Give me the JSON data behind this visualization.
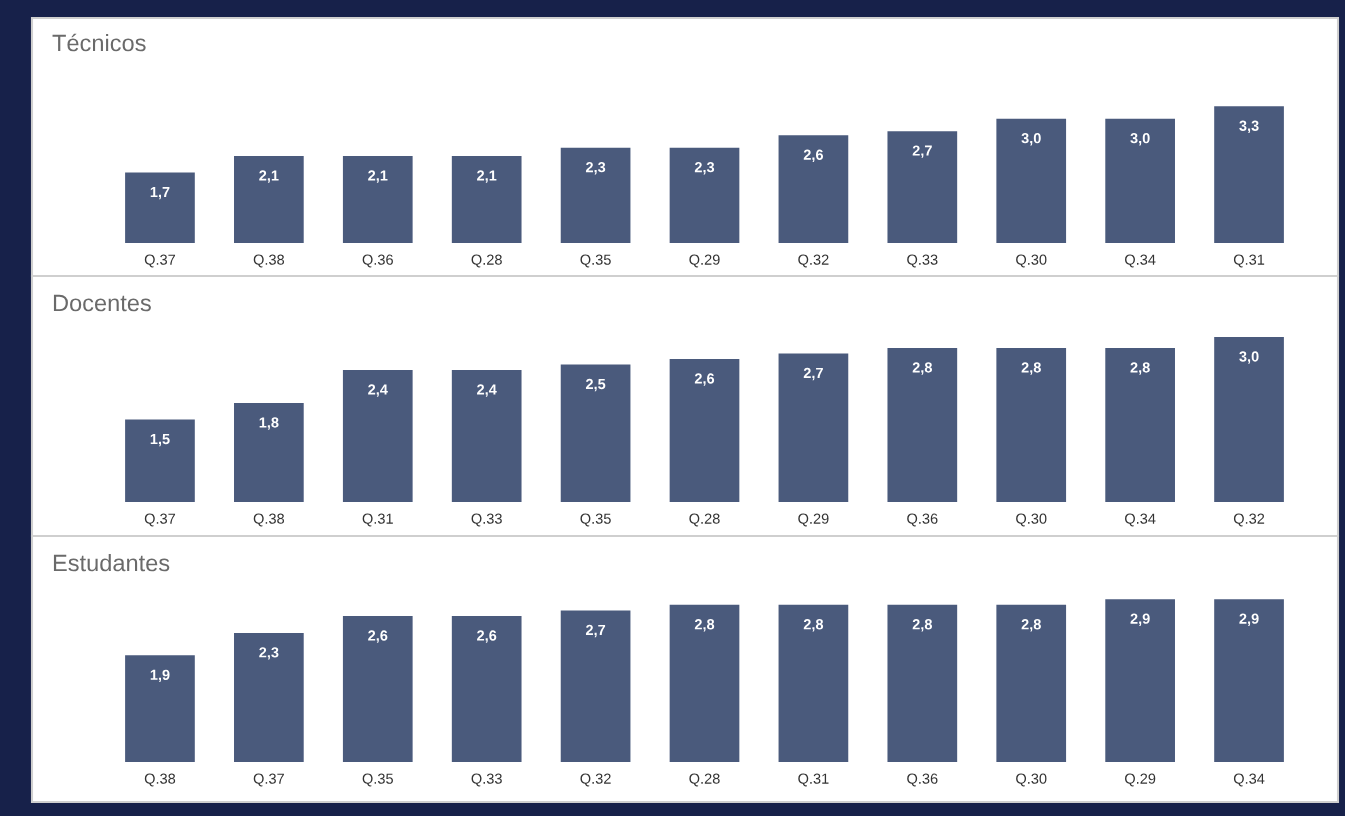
{
  "chart_data": [
    {
      "type": "bar",
      "title": "Técnicos",
      "categories": [
        "Q.37",
        "Q.38",
        "Q.36",
        "Q.28",
        "Q.35",
        "Q.29",
        "Q.32",
        "Q.33",
        "Q.30",
        "Q.34",
        "Q.31"
      ],
      "values": [
        1.7,
        2.1,
        2.1,
        2.1,
        2.3,
        2.3,
        2.6,
        2.7,
        3.0,
        3.0,
        3.3
      ],
      "value_labels": [
        "1,7",
        "2,1",
        "2,1",
        "2,1",
        "2,3",
        "2,3",
        "2,6",
        "2,7",
        "3,0",
        "3,0",
        "3,3"
      ],
      "color": "#4a5a7c",
      "tick_labels": "x",
      "grid": false,
      "legend": false
    },
    {
      "type": "bar",
      "title": "Docentes",
      "categories": [
        "Q.37",
        "Q.38",
        "Q.31",
        "Q.33",
        "Q.35",
        "Q.28",
        "Q.29",
        "Q.36",
        "Q.30",
        "Q.34",
        "Q.32"
      ],
      "values": [
        1.5,
        1.8,
        2.4,
        2.4,
        2.5,
        2.6,
        2.7,
        2.8,
        2.8,
        2.8,
        3.0
      ],
      "value_labels": [
        "1,5",
        "1,8",
        "2,4",
        "2,4",
        "2,5",
        "2,6",
        "2,7",
        "2,8",
        "2,8",
        "2,8",
        "3,0"
      ],
      "color": "#4a5a7c",
      "tick_labels": "x",
      "grid": false,
      "legend": false
    },
    {
      "type": "bar",
      "title": "Estudantes",
      "categories": [
        "Q.38",
        "Q.37",
        "Q.35",
        "Q.33",
        "Q.32",
        "Q.28",
        "Q.31",
        "Q.36",
        "Q.30",
        "Q.29",
        "Q.34"
      ],
      "values": [
        1.9,
        2.3,
        2.6,
        2.6,
        2.7,
        2.8,
        2.8,
        2.8,
        2.8,
        2.9,
        2.9
      ],
      "value_labels": [
        "1,9",
        "2,3",
        "2,6",
        "2,6",
        "2,7",
        "2,8",
        "2,8",
        "2,8",
        "2,8",
        "2,9",
        "2,9"
      ],
      "color": "#4a5a7c",
      "tick_labels": "x",
      "grid": false,
      "legend": false
    }
  ]
}
